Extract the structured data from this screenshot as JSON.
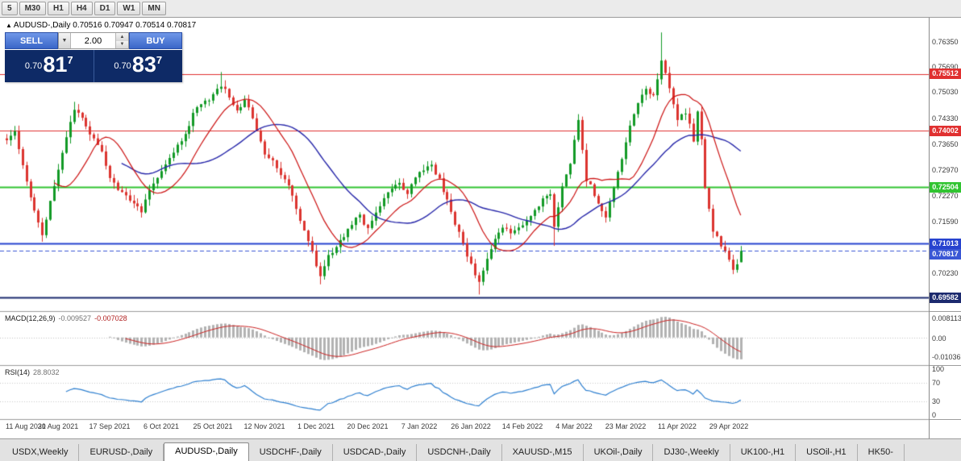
{
  "toolbar": {
    "timeframes": [
      "5",
      "M30",
      "H1",
      "H4",
      "D1",
      "W1",
      "MN"
    ]
  },
  "info_line": {
    "arrow": "▲",
    "symbol": "AUDUSD-,Daily",
    "ohlc": "0.70516 0.70947 0.70514 0.70817"
  },
  "trade": {
    "sell_label": "SELL",
    "buy_label": "BUY",
    "volume": "2.00",
    "dropdown_icon": "▼",
    "spin_up_icon": "▲",
    "spin_down_icon": "▼",
    "sell_price": {
      "prefix": "0.70",
      "big": "81",
      "sup": "7"
    },
    "buy_price": {
      "prefix": "0.70",
      "big": "83",
      "sup": "7"
    }
  },
  "price_scale": {
    "ticks": [
      "0.76350",
      "0.75690",
      "0.75030",
      "0.74330",
      "0.73650",
      "0.72970",
      "0.72270",
      "0.71590",
      "0.70230"
    ]
  },
  "chart_data": {
    "type": "candlestick",
    "symbol": "AUDUSD-",
    "period": "Daily",
    "bars": 186,
    "first_date": "11 Aug 2021",
    "last_ohlc": {
      "open": 0.70516,
      "high": 0.70947,
      "low": 0.70514,
      "close": 0.70817
    },
    "price_axis": {
      "top_price": 0.77,
      "bottom_price": 0.6922
    },
    "candle_colors": {
      "up": "#129a26",
      "down": "#dc342f"
    },
    "moving_averages": [
      {
        "period": 13,
        "color": "#cc1111"
      },
      {
        "period": 30,
        "color": "#2727aa"
      }
    ],
    "levels": [
      {
        "price": 0.75512,
        "label": "0.75512",
        "color": "#e03030",
        "lw": 1,
        "style": "solid"
      },
      {
        "price": 0.74002,
        "label": "0.74002",
        "color": "#e03030",
        "lw": 1,
        "style": "solid"
      },
      {
        "price": 0.72504,
        "label": "0.72504",
        "color": "#31c431",
        "lw": 2,
        "style": "solid"
      },
      {
        "price": 0.71013,
        "label": "0.71013",
        "color": "#2743cf",
        "lw": 2,
        "style": "solid"
      },
      {
        "price": 0.70817,
        "label": "0.70817",
        "color": "#3a57d5",
        "lw": 1,
        "style": "dash"
      },
      {
        "price": 0.69582,
        "label": "0.69582",
        "color": "#1c2a6e",
        "lw": 2,
        "style": "solid"
      }
    ],
    "x_labels": [
      {
        "label": "11 Aug 2021",
        "bar": 0
      },
      {
        "label": "30 Aug 2021",
        "bar": 13
      },
      {
        "label": "17 Sep 2021",
        "bar": 26
      },
      {
        "label": "6 Oct 2021",
        "bar": 39
      },
      {
        "label": "25 Oct 2021",
        "bar": 52
      },
      {
        "label": "12 Nov 2021",
        "bar": 65
      },
      {
        "label": "1 Dec 2021",
        "bar": 78
      },
      {
        "label": "20 Dec 2021",
        "bar": 91
      },
      {
        "label": "7 Jan 2022",
        "bar": 104
      },
      {
        "label": "26 Jan 2022",
        "bar": 117
      },
      {
        "label": "14 Feb 2022",
        "bar": 130
      },
      {
        "label": "4 Mar 2022",
        "bar": 143
      },
      {
        "label": "23 Mar 2022",
        "bar": 156
      },
      {
        "label": "11 Apr 2022",
        "bar": 169
      },
      {
        "label": "29 Apr 2022",
        "bar": 182
      }
    ],
    "price_path_anchors": [
      [
        0,
        0.7372
      ],
      [
        2,
        0.7392
      ],
      [
        4,
        0.7315
      ],
      [
        6,
        0.7225
      ],
      [
        8,
        0.7152
      ],
      [
        9,
        0.713
      ],
      [
        11,
        0.7208
      ],
      [
        13,
        0.729
      ],
      [
        15,
        0.7385
      ],
      [
        17,
        0.7455
      ],
      [
        19,
        0.7432
      ],
      [
        22,
        0.7378
      ],
      [
        24,
        0.7348
      ],
      [
        26,
        0.7268
      ],
      [
        28,
        0.7248
      ],
      [
        31,
        0.7218
      ],
      [
        34,
        0.7182
      ],
      [
        36,
        0.7242
      ],
      [
        39,
        0.7298
      ],
      [
        42,
        0.7345
      ],
      [
        45,
        0.7392
      ],
      [
        47,
        0.7442
      ],
      [
        49,
        0.747
      ],
      [
        52,
        0.7495
      ],
      [
        54,
        0.7522
      ],
      [
        56,
        0.7492
      ],
      [
        58,
        0.7455
      ],
      [
        60,
        0.7482
      ],
      [
        62,
        0.7438
      ],
      [
        65,
        0.7342
      ],
      [
        68,
        0.7302
      ],
      [
        71,
        0.7258
      ],
      [
        73,
        0.7192
      ],
      [
        75,
        0.7132
      ],
      [
        77,
        0.7078
      ],
      [
        79,
        0.7012
      ],
      [
        81,
        0.7068
      ],
      [
        83,
        0.7098
      ],
      [
        85,
        0.7122
      ],
      [
        87,
        0.7152
      ],
      [
        89,
        0.7178
      ],
      [
        91,
        0.7138
      ],
      [
        93,
        0.7188
      ],
      [
        96,
        0.7238
      ],
      [
        99,
        0.7268
      ],
      [
        101,
        0.7232
      ],
      [
        104,
        0.7292
      ],
      [
        107,
        0.7308
      ],
      [
        109,
        0.7268
      ],
      [
        111,
        0.7218
      ],
      [
        113,
        0.7158
      ],
      [
        115,
        0.7102
      ],
      [
        117,
        0.7042
      ],
      [
        119,
        0.7002
      ],
      [
        121,
        0.7062
      ],
      [
        123,
        0.7118
      ],
      [
        125,
        0.7148
      ],
      [
        127,
        0.7132
      ],
      [
        129,
        0.7142
      ],
      [
        131,
        0.7158
      ],
      [
        133,
        0.7185
      ],
      [
        135,
        0.7215
      ],
      [
        137,
        0.7232
      ],
      [
        138,
        0.7152
      ],
      [
        140,
        0.7252
      ],
      [
        142,
        0.7312
      ],
      [
        144,
        0.7428
      ],
      [
        146,
        0.7272
      ],
      [
        148,
        0.7232
      ],
      [
        151,
        0.7172
      ],
      [
        153,
        0.7248
      ],
      [
        155,
        0.7322
      ],
      [
        157,
        0.7418
      ],
      [
        159,
        0.7472
      ],
      [
        161,
        0.7508
      ],
      [
        163,
        0.7496
      ],
      [
        165,
        0.7582
      ],
      [
        166,
        0.7548
      ],
      [
        168,
        0.7472
      ],
      [
        169,
        0.7422
      ],
      [
        171,
        0.7452
      ],
      [
        173,
        0.7378
      ],
      [
        174,
        0.7448
      ],
      [
        175,
        0.7372
      ],
      [
        176,
        0.7252
      ],
      [
        177,
        0.7188
      ],
      [
        178,
        0.713
      ],
      [
        180,
        0.7098
      ],
      [
        182,
        0.7062
      ],
      [
        183,
        0.7038
      ],
      [
        184,
        0.7052
      ],
      [
        185,
        0.70817
      ]
    ],
    "wick_extremes": [
      {
        "i": 9,
        "low": 0.7106
      },
      {
        "i": 17,
        "high": 0.7477
      },
      {
        "i": 34,
        "low": 0.717
      },
      {
        "i": 54,
        "high": 0.7556
      },
      {
        "i": 79,
        "low": 0.6993
      },
      {
        "i": 107,
        "high": 0.7314
      },
      {
        "i": 119,
        "low": 0.6966
      },
      {
        "i": 138,
        "low": 0.7095
      },
      {
        "i": 144,
        "high": 0.7441
      },
      {
        "i": 151,
        "low": 0.7165
      },
      {
        "i": 165,
        "high": 0.7661
      },
      {
        "i": 184,
        "low": 0.703
      }
    ],
    "indicators": {
      "macd": {
        "label": "MACD(12,26,9)",
        "value_main": "-0.009527",
        "value_signal": "-0.007028",
        "scale": [
          "0.008113",
          "0.00",
          "-0.01036"
        ],
        "histogram_color": "#b2b2b2",
        "signal_color": "#cc2222"
      },
      "rsi": {
        "label": "RSI(14)",
        "value": "28.8032",
        "scale": [
          "100",
          "70",
          "30",
          "0"
        ],
        "line_color": "#2d7fd0",
        "level_lines": [
          70,
          30
        ]
      }
    }
  },
  "tabs": {
    "active_index": 2,
    "items": [
      "USDX,Weekly",
      "EURUSD-,Daily",
      "AUDUSD-,Daily",
      "USDCHF-,Daily",
      "USDCAD-,Daily",
      "USDCNH-,Daily",
      "XAUUSD-,M15",
      "UKOil-,Daily",
      "DJ30-,Weekly",
      "UK100-,H1",
      "USOil-,H1",
      "HK50-"
    ]
  }
}
